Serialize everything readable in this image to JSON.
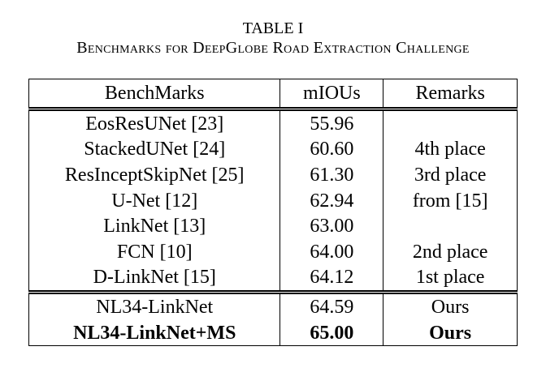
{
  "caption": {
    "label": "TABLE I",
    "title": "Benchmarks for DeepGlobe Road Extraction Challenge"
  },
  "table": {
    "header": [
      "BenchMarks",
      "mIOUs",
      "Remarks"
    ],
    "groups": [
      {
        "rows": [
          [
            "EosResUNet [23]",
            "55.96",
            null
          ],
          [
            "StackedUNet [24]",
            "60.60",
            "4th place"
          ],
          [
            "ResInceptSkipNet [25]",
            "61.30",
            "3rd place"
          ],
          [
            "U-Net [12]",
            "62.94",
            "from [15]"
          ],
          [
            "LinkNet [13]",
            "63.00",
            null
          ],
          [
            "FCN [10]",
            "64.00",
            "2nd place"
          ],
          [
            "D-LinkNet [15]",
            "64.12",
            "1st place"
          ]
        ]
      },
      {
        "rows": [
          [
            "NL34-LinkNet",
            "64.59",
            "Ours"
          ],
          [
            "NL34-LinkNet+MS",
            "65.00",
            "Ours"
          ]
        ]
      }
    ]
  }
}
